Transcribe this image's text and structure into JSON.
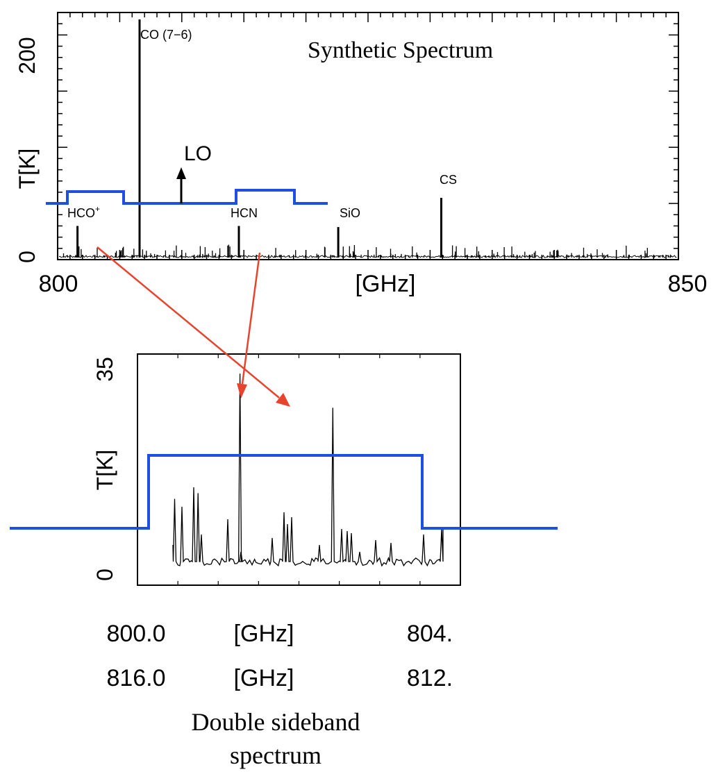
{
  "colors": {
    "spectrum": "#000000",
    "bandpass": "#1e4fe0",
    "arrow": "#e8432c",
    "background": "#ffffff"
  },
  "top_panel": {
    "title": "Synthetic Spectrum",
    "ylabel": "T[K]",
    "xlabel": "[GHz]",
    "x_tick_labels": [
      "800",
      "850"
    ],
    "y_tick_labels": [
      "0",
      "200"
    ],
    "lo_label": "LO",
    "line_labels": {
      "hco": "HCO",
      "hco_sup": "+",
      "co": "CO (7−6)",
      "hcn": "HCN",
      "sio": "SiO",
      "cs": "CS"
    }
  },
  "bottom_panel": {
    "ylabel": "T[K]",
    "xlabel_1": "[GHz]",
    "xlabel_2": "[GHz]",
    "x_ticks_row1": [
      "800.0",
      "804."
    ],
    "x_ticks_row2": [
      "816.0",
      "812."
    ],
    "y_tick_labels": [
      "0",
      "35"
    ],
    "caption_line1": "Double sideband",
    "caption_line2": "spectrum"
  },
  "chart_data": [
    {
      "type": "line",
      "title": "Synthetic Spectrum",
      "xlabel": "[GHz]",
      "ylabel": "T[K]",
      "xlim": [
        800,
        850
      ],
      "ylim": [
        0,
        220
      ],
      "x_ticks": [
        800,
        850
      ],
      "y_ticks": [
        0,
        200
      ],
      "lines": [
        {
          "name": "HCO",
          "x": 801.6,
          "y": 30
        },
        {
          "name": "CO (7−6)",
          "x": 806.6,
          "y": 225
        },
        {
          "name": "HCN",
          "x": 814.6,
          "y": 30
        },
        {
          "name": "SiO",
          "x": 822.6,
          "y": 29
        },
        {
          "name": "CS",
          "x": 830.9,
          "y": 55
        }
      ],
      "lo": {
        "label": "LO",
        "x": 809.0
      },
      "sidebands": [
        [
          801.0,
          805.5
        ],
        [
          812.5,
          817.0
        ]
      ]
    },
    {
      "type": "line",
      "title": "",
      "xlabel": "[GHz]",
      "ylabel": "T[K]",
      "xlim": [
        800.0,
        804.0
      ],
      "ylim": [
        0,
        35
      ],
      "x_ticks_lsb": [
        800.0,
        804.0
      ],
      "x_ticks_usb": [
        816.0,
        812.0
      ],
      "y_ticks": [
        0,
        35
      ],
      "peaks": [
        {
          "x": 801.27,
          "y": 34
        },
        {
          "x": 802.42,
          "y": 28
        },
        {
          "x": 800.46,
          "y": 12
        },
        {
          "x": 800.75,
          "y": 13
        }
      ],
      "bandpass_level": "passband"
    }
  ]
}
